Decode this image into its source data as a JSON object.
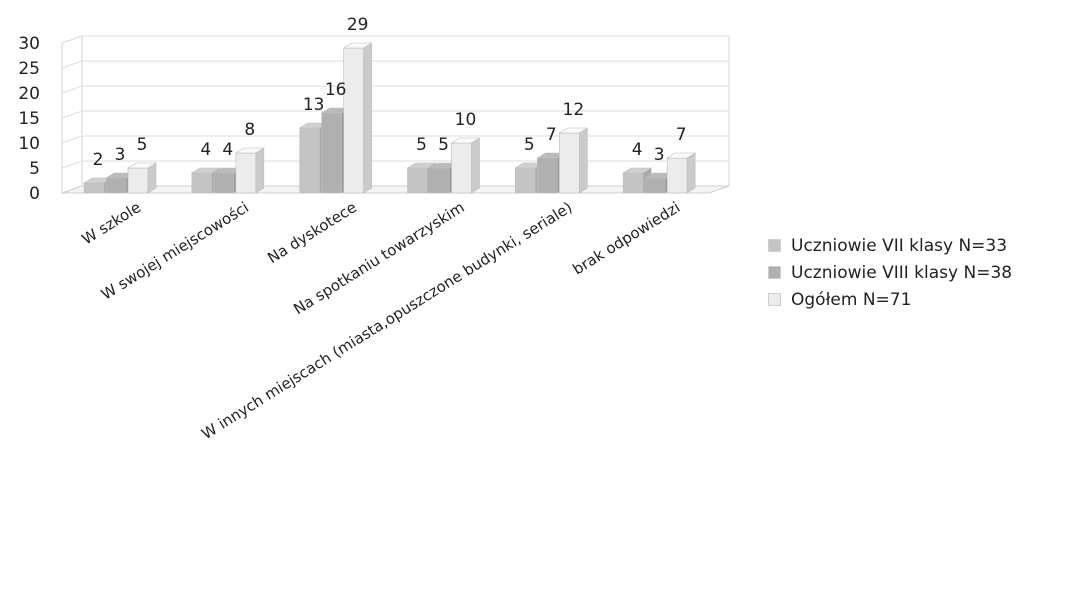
{
  "chart_data": {
    "type": "bar",
    "categories": [
      "W szkole",
      "W swojej miejscowości",
      "Na dyskotece",
      "Na spotkaniu towarzyskim",
      "W innych miejscach (miasta,opuszczone budynki, seriale)",
      "brak odpowiedzi"
    ],
    "series": [
      {
        "name": "Uczniowie VII klasy N=33",
        "values": [
          2,
          4,
          13,
          5,
          5,
          4
        ],
        "color": "#c4c4c4"
      },
      {
        "name": "Uczniowie VIII klasy N=38",
        "values": [
          3,
          4,
          16,
          5,
          7,
          3
        ],
        "color": "#b0b0b0"
      },
      {
        "name": "Ogółem N=71",
        "values": [
          5,
          8,
          29,
          10,
          12,
          7
        ],
        "color": "#ececec"
      }
    ],
    "yticks": [
      "0",
      "5",
      "10",
      "15",
      "20",
      "25",
      "30"
    ],
    "ylim": [
      0,
      30
    ],
    "grid": true,
    "legend_position": "right"
  }
}
